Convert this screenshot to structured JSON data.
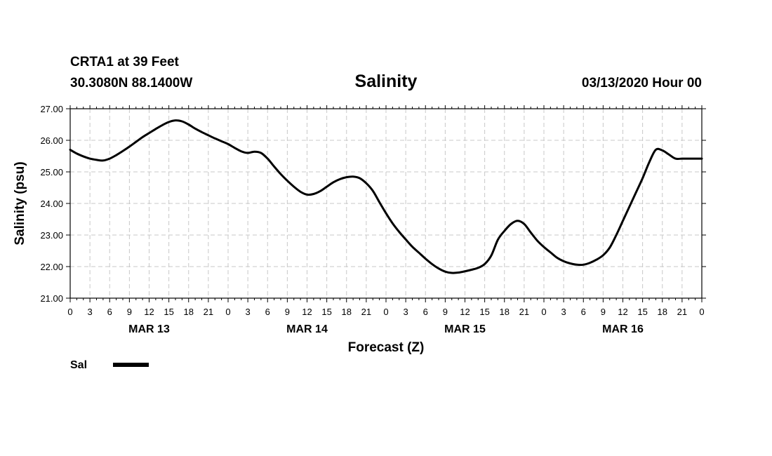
{
  "header": {
    "station": "CRTA1 at 39 Feet",
    "coords": "30.3080N 88.1400W",
    "run": "03/13/2020 Hour 00"
  },
  "chart_data": {
    "type": "line",
    "title": "Salinity",
    "xlabel": "Forecast (Z)",
    "ylabel": "Salinity (psu)",
    "ylim": [
      21.0,
      27.0
    ],
    "xlim": [
      0,
      96
    ],
    "y_ticks": [
      "21.00",
      "22.00",
      "23.00",
      "24.00",
      "25.00",
      "26.00",
      "27.00"
    ],
    "y_tick_values": [
      21,
      22,
      23,
      24,
      25,
      26,
      27
    ],
    "x_tick_labels": [
      "0",
      "3",
      "6",
      "9",
      "12",
      "15",
      "18",
      "21",
      "0",
      "3",
      "6",
      "9",
      "12",
      "15",
      "18",
      "21",
      "0",
      "3",
      "6",
      "9",
      "12",
      "15",
      "18",
      "21",
      "0",
      "3",
      "6",
      "9",
      "12",
      "15",
      "18",
      "21",
      "0"
    ],
    "x_tick_hours": [
      0,
      3,
      6,
      9,
      12,
      15,
      18,
      21,
      24,
      27,
      30,
      33,
      36,
      39,
      42,
      45,
      48,
      51,
      54,
      57,
      60,
      63,
      66,
      69,
      72,
      75,
      78,
      81,
      84,
      87,
      90,
      93,
      96
    ],
    "day_labels": [
      {
        "label": "MAR 13",
        "hour": 12
      },
      {
        "label": "MAR 14",
        "hour": 36
      },
      {
        "label": "MAR 15",
        "hour": 60
      },
      {
        "label": "MAR 16",
        "hour": 84
      }
    ],
    "grid": true,
    "series": [
      {
        "name": "Sal",
        "color": "#000000",
        "x": [
          0,
          1,
          2,
          3,
          4,
          5,
          6,
          7,
          8,
          9,
          10,
          11,
          12,
          13,
          14,
          15,
          16,
          17,
          18,
          19,
          20,
          21,
          22,
          23,
          24,
          25,
          26,
          27,
          28,
          29,
          30,
          31,
          32,
          33,
          34,
          35,
          36,
          37,
          38,
          39,
          40,
          41,
          42,
          43,
          44,
          45,
          46,
          47,
          48,
          49,
          50,
          51,
          52,
          53,
          54,
          55,
          56,
          57,
          58,
          59,
          60,
          61,
          62,
          63,
          64,
          65,
          66,
          67,
          68,
          69,
          70,
          71,
          72,
          73,
          74,
          75,
          76,
          77,
          78,
          79,
          80,
          81,
          82,
          83,
          84,
          85,
          86,
          87,
          88,
          89,
          90,
          91,
          92,
          93,
          94,
          95,
          96
        ],
        "y": [
          25.7,
          25.58,
          25.49,
          25.42,
          25.38,
          25.36,
          25.42,
          25.53,
          25.66,
          25.8,
          25.95,
          26.1,
          26.23,
          26.36,
          26.48,
          26.58,
          26.63,
          26.6,
          26.5,
          26.37,
          26.26,
          26.16,
          26.06,
          25.97,
          25.88,
          25.76,
          25.65,
          25.6,
          25.64,
          25.6,
          25.42,
          25.17,
          24.93,
          24.72,
          24.53,
          24.37,
          24.28,
          24.3,
          24.39,
          24.53,
          24.67,
          24.77,
          24.83,
          24.85,
          24.8,
          24.64,
          24.4,
          24.04,
          23.69,
          23.37,
          23.1,
          22.86,
          22.63,
          22.44,
          22.25,
          22.08,
          21.94,
          21.84,
          21.8,
          21.81,
          21.85,
          21.9,
          21.96,
          22.08,
          22.35,
          22.85,
          23.13,
          23.35,
          23.45,
          23.35,
          23.08,
          22.82,
          22.62,
          22.45,
          22.28,
          22.17,
          22.1,
          22.06,
          22.06,
          22.12,
          22.22,
          22.36,
          22.6,
          23.0,
          23.45,
          23.9,
          24.35,
          24.8,
          25.3,
          25.7,
          25.68,
          25.55,
          25.42,
          25.42,
          25.42,
          25.42,
          25.42
        ]
      }
    ]
  }
}
